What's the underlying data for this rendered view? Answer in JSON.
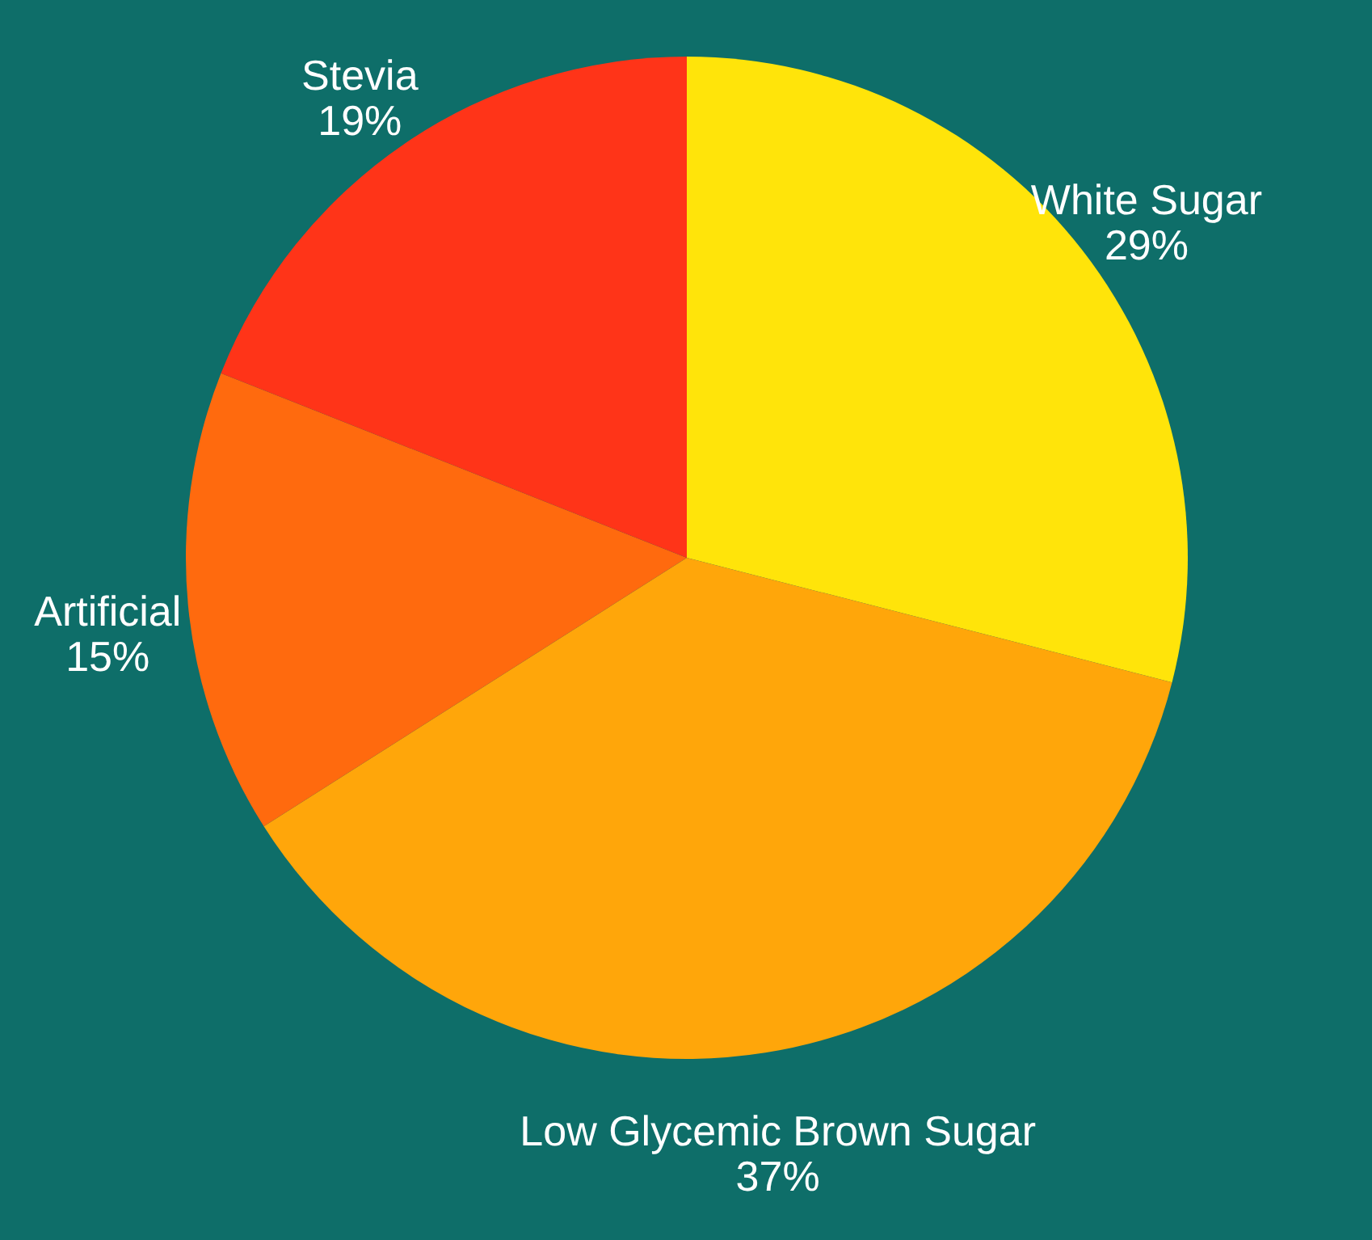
{
  "chart_data": {
    "type": "pie",
    "categories": [
      "White Sugar",
      "Low Glycemic Brown Sugar",
      "Artificial",
      "Stevia"
    ],
    "values": [
      29,
      37,
      15,
      19
    ],
    "value_labels": [
      "29%",
      "37%",
      "15%",
      "19%"
    ],
    "colors": [
      "#ffe40a",
      "#ffa60a",
      "#ff6a0e",
      "#ff3418"
    ]
  }
}
